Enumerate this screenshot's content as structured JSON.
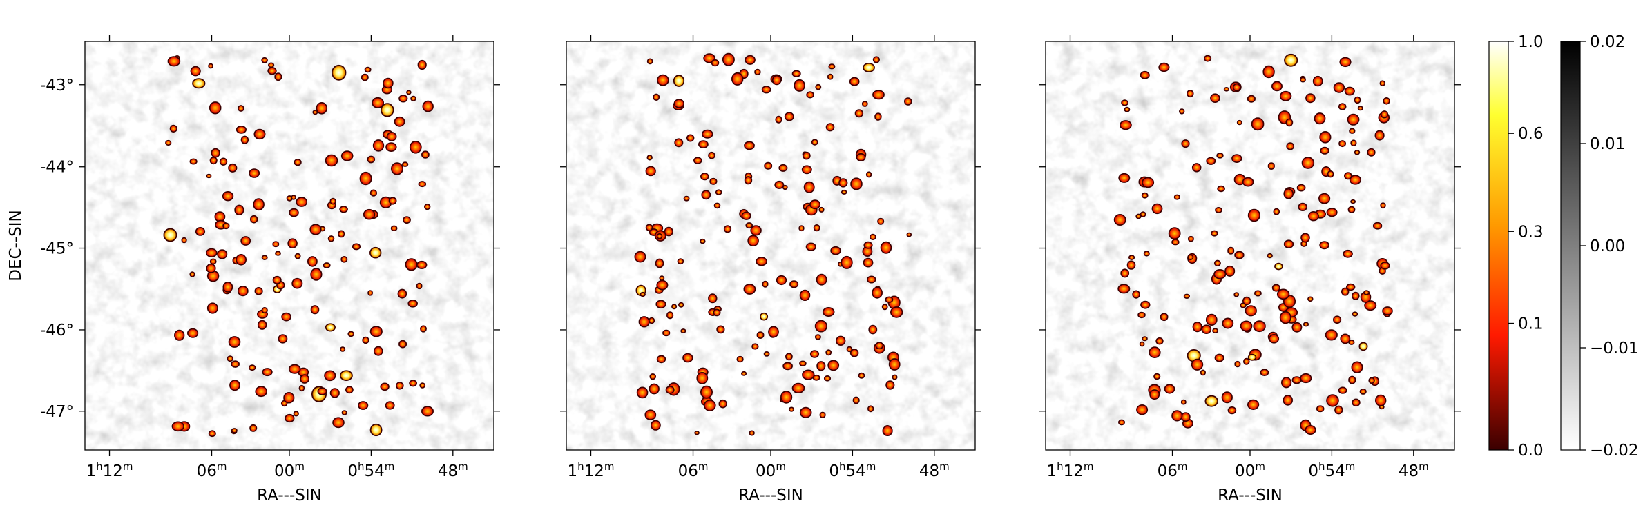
{
  "chart_data": [
    {
      "type": "heatmap",
      "panel": "left",
      "xlabel": "RA---SIN",
      "ylabel": "DEC--SIN",
      "x_ticks": [
        {
          "h": "1",
          "m": "12"
        },
        {
          "h": "",
          "m": "06"
        },
        {
          "h": "",
          "m": "00"
        },
        {
          "h": "0",
          "m": "54"
        },
        {
          "h": "",
          "m": "48"
        }
      ],
      "y_ticks": [
        "-43°",
        "-44°",
        "-45°",
        "-46°",
        "-47°"
      ],
      "source_count": 170,
      "source_seed": 11
    },
    {
      "type": "heatmap",
      "panel": "middle",
      "xlabel": "RA---SIN",
      "ylabel": "",
      "x_ticks": [
        {
          "h": "1",
          "m": "12"
        },
        {
          "h": "",
          "m": "06"
        },
        {
          "h": "",
          "m": "00"
        },
        {
          "h": "0",
          "m": "54"
        },
        {
          "h": "",
          "m": "48"
        }
      ],
      "y_ticks": [],
      "source_count": 190,
      "source_seed": 23
    },
    {
      "type": "heatmap",
      "panel": "right",
      "xlabel": "RA---SIN",
      "ylabel": "",
      "x_ticks": [
        {
          "h": "1",
          "m": "12"
        },
        {
          "h": "",
          "m": "06"
        },
        {
          "h": "",
          "m": "00"
        },
        {
          "h": "0",
          "m": "54"
        },
        {
          "h": "",
          "m": "48"
        }
      ],
      "y_ticks": [],
      "source_count": 200,
      "source_seed": 37
    }
  ],
  "colorbars": [
    {
      "name": "hot",
      "ticks": [
        "1.0",
        "0.6",
        "0.3",
        "0.1",
        "0.0"
      ],
      "colors": [
        "#ffffff",
        "#ffff00",
        "#ff9900",
        "#ff1a00",
        "#3a0000"
      ]
    },
    {
      "name": "gray",
      "ticks": [
        "0.02",
        "0.01",
        "0.00",
        "−0.01",
        "−0.02"
      ],
      "colors": [
        "#000000",
        "#ffffff"
      ]
    }
  ],
  "colors": {
    "background_gray": "#9e9e9e",
    "source_outline": "#3a0000"
  }
}
